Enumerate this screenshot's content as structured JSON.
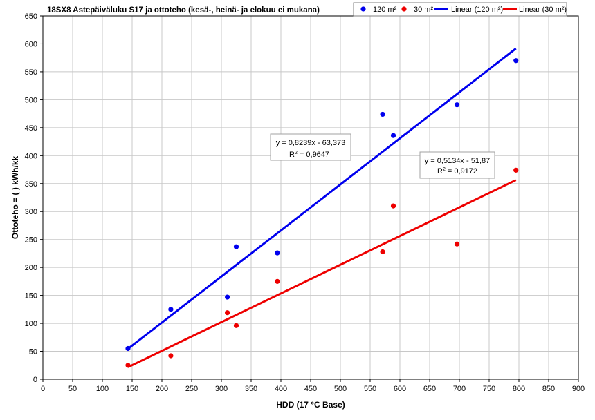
{
  "chart_data": {
    "type": "scatter",
    "title": "18SX8 Astepäiväluku S17 ja ottoteho (kesä-, heinä- ja elokuu ei mukana)",
    "xlabel": "HDD (17 °C Base)",
    "ylabel": "Ottoteho = ( ) kWh/kk",
    "xlim": [
      0,
      900
    ],
    "ylim": [
      0,
      650
    ],
    "x_ticks": [
      "0",
      "50",
      "100",
      "150",
      "200",
      "250",
      "300",
      "350",
      "400",
      "450",
      "500",
      "550",
      "600",
      "650",
      "700",
      "750",
      "800",
      "850",
      "900"
    ],
    "y_ticks": [
      "0",
      "50",
      "100",
      "150",
      "200",
      "250",
      "300",
      "350",
      "400",
      "450",
      "500",
      "550",
      "600",
      "650"
    ],
    "grid": true,
    "legend_position": "top-right",
    "series": [
      {
        "name": "120 m²",
        "color": "#0000ee",
        "points": [
          [
            143,
            55
          ],
          [
            215,
            125
          ],
          [
            310,
            147
          ],
          [
            325,
            237
          ],
          [
            394,
            226
          ],
          [
            571,
            474
          ],
          [
            589,
            436
          ],
          [
            696,
            491
          ],
          [
            795,
            570
          ]
        ]
      },
      {
        "name": "30 m²",
        "color": "#ee0000",
        "points": [
          [
            143,
            25
          ],
          [
            215,
            42
          ],
          [
            310,
            119
          ],
          [
            325,
            96
          ],
          [
            394,
            175
          ],
          [
            571,
            228
          ],
          [
            589,
            310
          ],
          [
            696,
            242
          ],
          [
            795,
            374
          ]
        ]
      }
    ],
    "trendlines": [
      {
        "name": "Linear (120 m²)",
        "color": "#0000ee",
        "slope": 0.8239,
        "intercept": -63.373,
        "x_range": [
          143,
          795
        ],
        "equation": "y = 0,8239x - 63,373",
        "r2_label": "R",
        "r2_value": " = 0,9647"
      },
      {
        "name": "Linear (30 m²)",
        "color": "#ee0000",
        "slope": 0.5134,
        "intercept": -51.87,
        "x_range": [
          143,
          795
        ],
        "equation": "y = 0,5134x - 51,87",
        "r2_label": "R",
        "r2_value": " = 0,9172"
      }
    ]
  }
}
